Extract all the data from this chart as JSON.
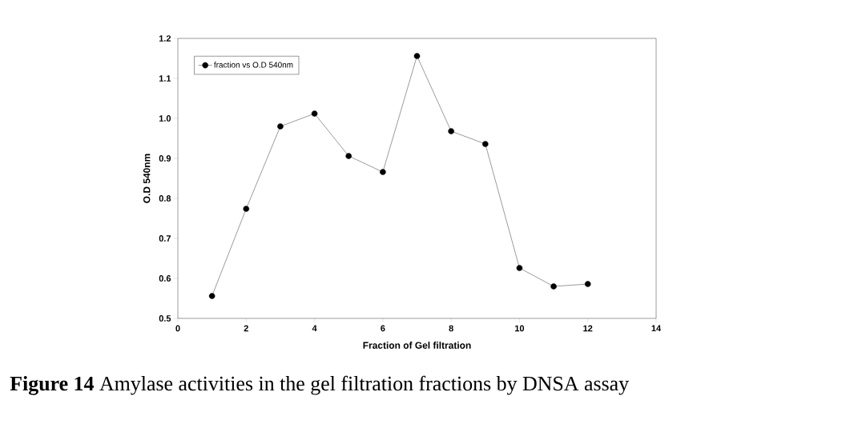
{
  "chart_data": {
    "type": "line",
    "xlabel": "Fraction of Gel filtration",
    "ylabel": "O.D 540nm",
    "x": [
      1,
      2,
      3,
      4,
      5,
      6,
      7,
      8,
      9,
      10,
      11,
      12
    ],
    "series": [
      {
        "name": "fraction vs O.D 540nm",
        "color": "#000000",
        "values": [
          0.556,
          0.774,
          0.98,
          1.012,
          0.906,
          0.866,
          1.156,
          0.968,
          0.936,
          0.626,
          0.58,
          0.586
        ]
      }
    ],
    "xlim": [
      0,
      14
    ],
    "xticks": [
      0,
      2,
      4,
      6,
      8,
      10,
      12,
      14
    ],
    "ylim": [
      0.5,
      1.2
    ],
    "yticks": [
      {
        "value": 0.5,
        "label": "0.5"
      },
      {
        "value": 0.6,
        "label": "0.6"
      },
      {
        "value": 0.7,
        "label": "0.7"
      },
      {
        "value": 0.8,
        "label": "0.8"
      },
      {
        "value": 0.9,
        "label": "0.9"
      },
      {
        "value": 1.0,
        "label": "1.0"
      },
      {
        "value": 1.1,
        "label": "1.1"
      },
      {
        "value": 1.2,
        "label": "1.2"
      }
    ],
    "marker": "circle",
    "line_style": "solid",
    "grid": false,
    "legend": "top left",
    "annotations": [
      "**Figure 14** Amylase activities in the gel filtration fractions by DNSA assay"
    ]
  }
}
